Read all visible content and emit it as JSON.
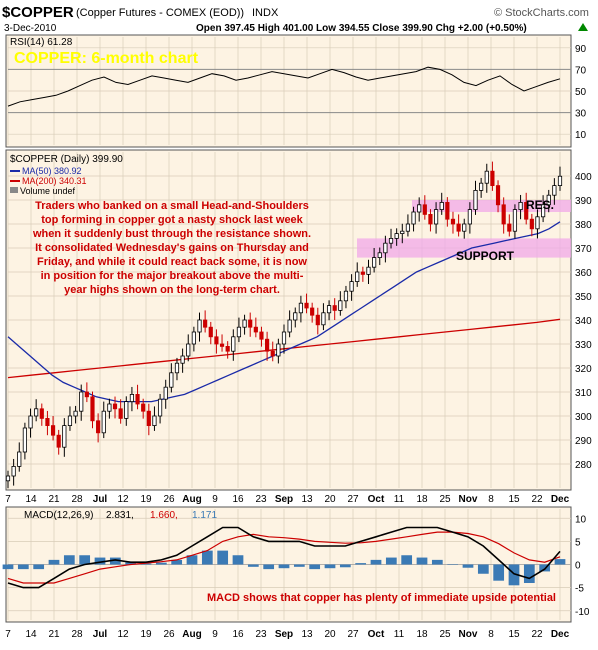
{
  "header": {
    "symbol": "$COPPER",
    "description": "(Copper Futures - COMEX (EOD))",
    "exchange": "INDX",
    "date": "3-Dec-2010",
    "ohlc": "Open 397.45 High 401.00 Low 394.55 Close 399.90 Chg +2.00 (+0.50%)",
    "source": "© StockCharts.com",
    "ohlc_up_arrow": "up-arrow"
  },
  "colors": {
    "panel_bg": "#fdf3e3",
    "grid": "#d8ccb8",
    "up": "#000000",
    "down": "#cc0000",
    "ma50": "#1a2aa8",
    "ma200": "#cc0000",
    "macd": "#000000",
    "signal": "#cc0000",
    "histogram": "#3b7ab5",
    "zone": "#f0a8e8",
    "title_yellow": "#ffff00",
    "annotation_red": "#cc0000"
  },
  "rsi_panel": {
    "legend": "RSI(14) 61.28",
    "title_overlay": "COPPER: 6-month chart",
    "ticks": [
      "90",
      "70",
      "50",
      "30",
      "10"
    ]
  },
  "price_panel": {
    "legend_main": "$COPPER (Daily) 399.90",
    "legend_ma50": "MA(50) 380.92",
    "legend_ma200": "MA(200) 340.31",
    "legend_volume": "Volume undef",
    "ticks": [
      "400",
      "390",
      "380",
      "370",
      "360",
      "350",
      "340",
      "330",
      "320",
      "310",
      "300",
      "290",
      "280"
    ],
    "annotation": [
      "Traders who banked on a small Head-and-Shoulders",
      "top forming in copper got a nasty shock last week",
      "when it suddenly bust through the resistance shown.",
      "It consolidated Wednesday's gains on Thursday and",
      "Friday, and while it could react back some, it is now",
      "in position for the major breakout above the multi-",
      "year highs shown on the long-term chart."
    ],
    "resistance_label": "RES.",
    "support_label": "SUPPORT"
  },
  "macd_panel": {
    "legend_prefix": "MACD(12,26,9)",
    "legend_macd": "2.831,",
    "legend_signal": "1.660,",
    "legend_hist": "1.171",
    "ticks": [
      "10",
      "5",
      "0",
      "-5",
      "-10"
    ],
    "annotation": "MACD shows that copper has plenty of immediate upside potential"
  },
  "x_axis_labels": [
    "7",
    "14",
    "21",
    "28",
    "Jul",
    "12",
    "19",
    "26",
    "Aug",
    "9",
    "16",
    "23",
    "Sep",
    "13",
    "20",
    "27",
    "Oct",
    "11",
    "18",
    "25",
    "Nov",
    "8",
    "15",
    "22",
    "Dec"
  ],
  "chart_data": {
    "type": "candlestick",
    "title": "COPPER: 6-month chart",
    "x_labels": [
      "7",
      "14",
      "21",
      "28",
      "Jul",
      "12",
      "19",
      "26",
      "Aug",
      "9",
      "16",
      "23",
      "Sep",
      "13",
      "20",
      "27",
      "Oct",
      "11",
      "18",
      "25",
      "Nov",
      "8",
      "15",
      "22",
      "Dec"
    ],
    "price": {
      "ylim": [
        270,
        410
      ],
      "closes": [
        275,
        279,
        285,
        295,
        300,
        303,
        299,
        296,
        292,
        287,
        296,
        300,
        302,
        310,
        308,
        298,
        293,
        302,
        305,
        303,
        299,
        306,
        309,
        305,
        302,
        296,
        300,
        307,
        312,
        318,
        322,
        325,
        330,
        335,
        340,
        337,
        333,
        330,
        329,
        327,
        333,
        337,
        340,
        337,
        335,
        332,
        327,
        325,
        330,
        335,
        340,
        343,
        347,
        345,
        342,
        338,
        343,
        346,
        344,
        348,
        352,
        356,
        360,
        359,
        362,
        366,
        368,
        372,
        374,
        376,
        377,
        380,
        385,
        388,
        384,
        380,
        386,
        389,
        382,
        380,
        377,
        380,
        386,
        394,
        397,
        402,
        396,
        388,
        380,
        377,
        386,
        389,
        382,
        378,
        383,
        388,
        392,
        396,
        399.9
      ],
      "ma50": [
        333,
        329,
        325,
        321,
        317,
        314,
        312,
        310,
        308,
        307,
        306,
        306,
        306,
        306,
        307,
        308,
        309,
        311,
        313,
        315,
        317,
        319,
        321,
        323,
        325,
        327,
        329,
        331,
        333,
        336,
        339,
        342,
        345,
        348,
        351,
        354,
        357,
        360,
        362,
        364,
        366,
        368,
        370,
        371,
        372,
        373,
        374,
        375,
        376,
        378,
        380.9
      ],
      "ma200": [
        316,
        317,
        318,
        319,
        320,
        321,
        322,
        323,
        324,
        325,
        326,
        327,
        328,
        329,
        330,
        331,
        332,
        333,
        334,
        335,
        336,
        337,
        338,
        339,
        340.3
      ],
      "resistance_zone": [
        385,
        390
      ],
      "support_zone": [
        366,
        374
      ]
    },
    "rsi": {
      "ylim": [
        0,
        100
      ],
      "values": [
        36,
        40,
        42,
        44,
        46,
        50,
        55,
        60,
        63,
        58,
        56,
        60,
        64,
        62,
        60,
        58,
        62,
        66,
        64,
        60,
        62,
        65,
        68,
        66,
        64,
        62,
        66,
        70,
        67,
        63,
        60,
        62,
        64,
        66,
        68,
        72,
        70,
        65,
        58,
        55,
        60,
        64,
        56,
        50,
        54,
        58,
        61.28
      ]
    },
    "macd": {
      "ylim": [
        -12,
        12
      ],
      "macd": [
        -4,
        -5,
        -5,
        -3,
        -1,
        0,
        0.5,
        1,
        0.5,
        0.5,
        1,
        2,
        4,
        6,
        8,
        8,
        6,
        5,
        5,
        5,
        4,
        4,
        4,
        5,
        6,
        7,
        8,
        8,
        8,
        7,
        6,
        4,
        1,
        -2,
        -3,
        -1,
        2.831
      ],
      "signal": [
        -3,
        -4,
        -4,
        -4,
        -3,
        -2,
        -1,
        -0.5,
        0,
        0.3,
        0.6,
        1,
        2,
        3,
        5,
        6,
        6.5,
        6,
        5.8,
        5.5,
        5,
        4.8,
        4.6,
        4.7,
        5,
        5.5,
        6,
        6.5,
        7,
        7,
        6.7,
        6,
        4.5,
        2.5,
        1,
        0.5,
        1.66
      ],
      "histogram": [
        -1,
        -1,
        -1,
        1,
        2,
        2,
        1.5,
        1.5,
        0.5,
        0.2,
        0.4,
        1,
        2,
        3,
        3,
        2,
        -0.5,
        -1,
        -0.8,
        -0.5,
        -1,
        -0.8,
        -0.6,
        0.3,
        1,
        1.5,
        2,
        1.5,
        1,
        0,
        -0.7,
        -2,
        -3.5,
        -4.5,
        -4,
        -1.5,
        1.171
      ]
    }
  }
}
